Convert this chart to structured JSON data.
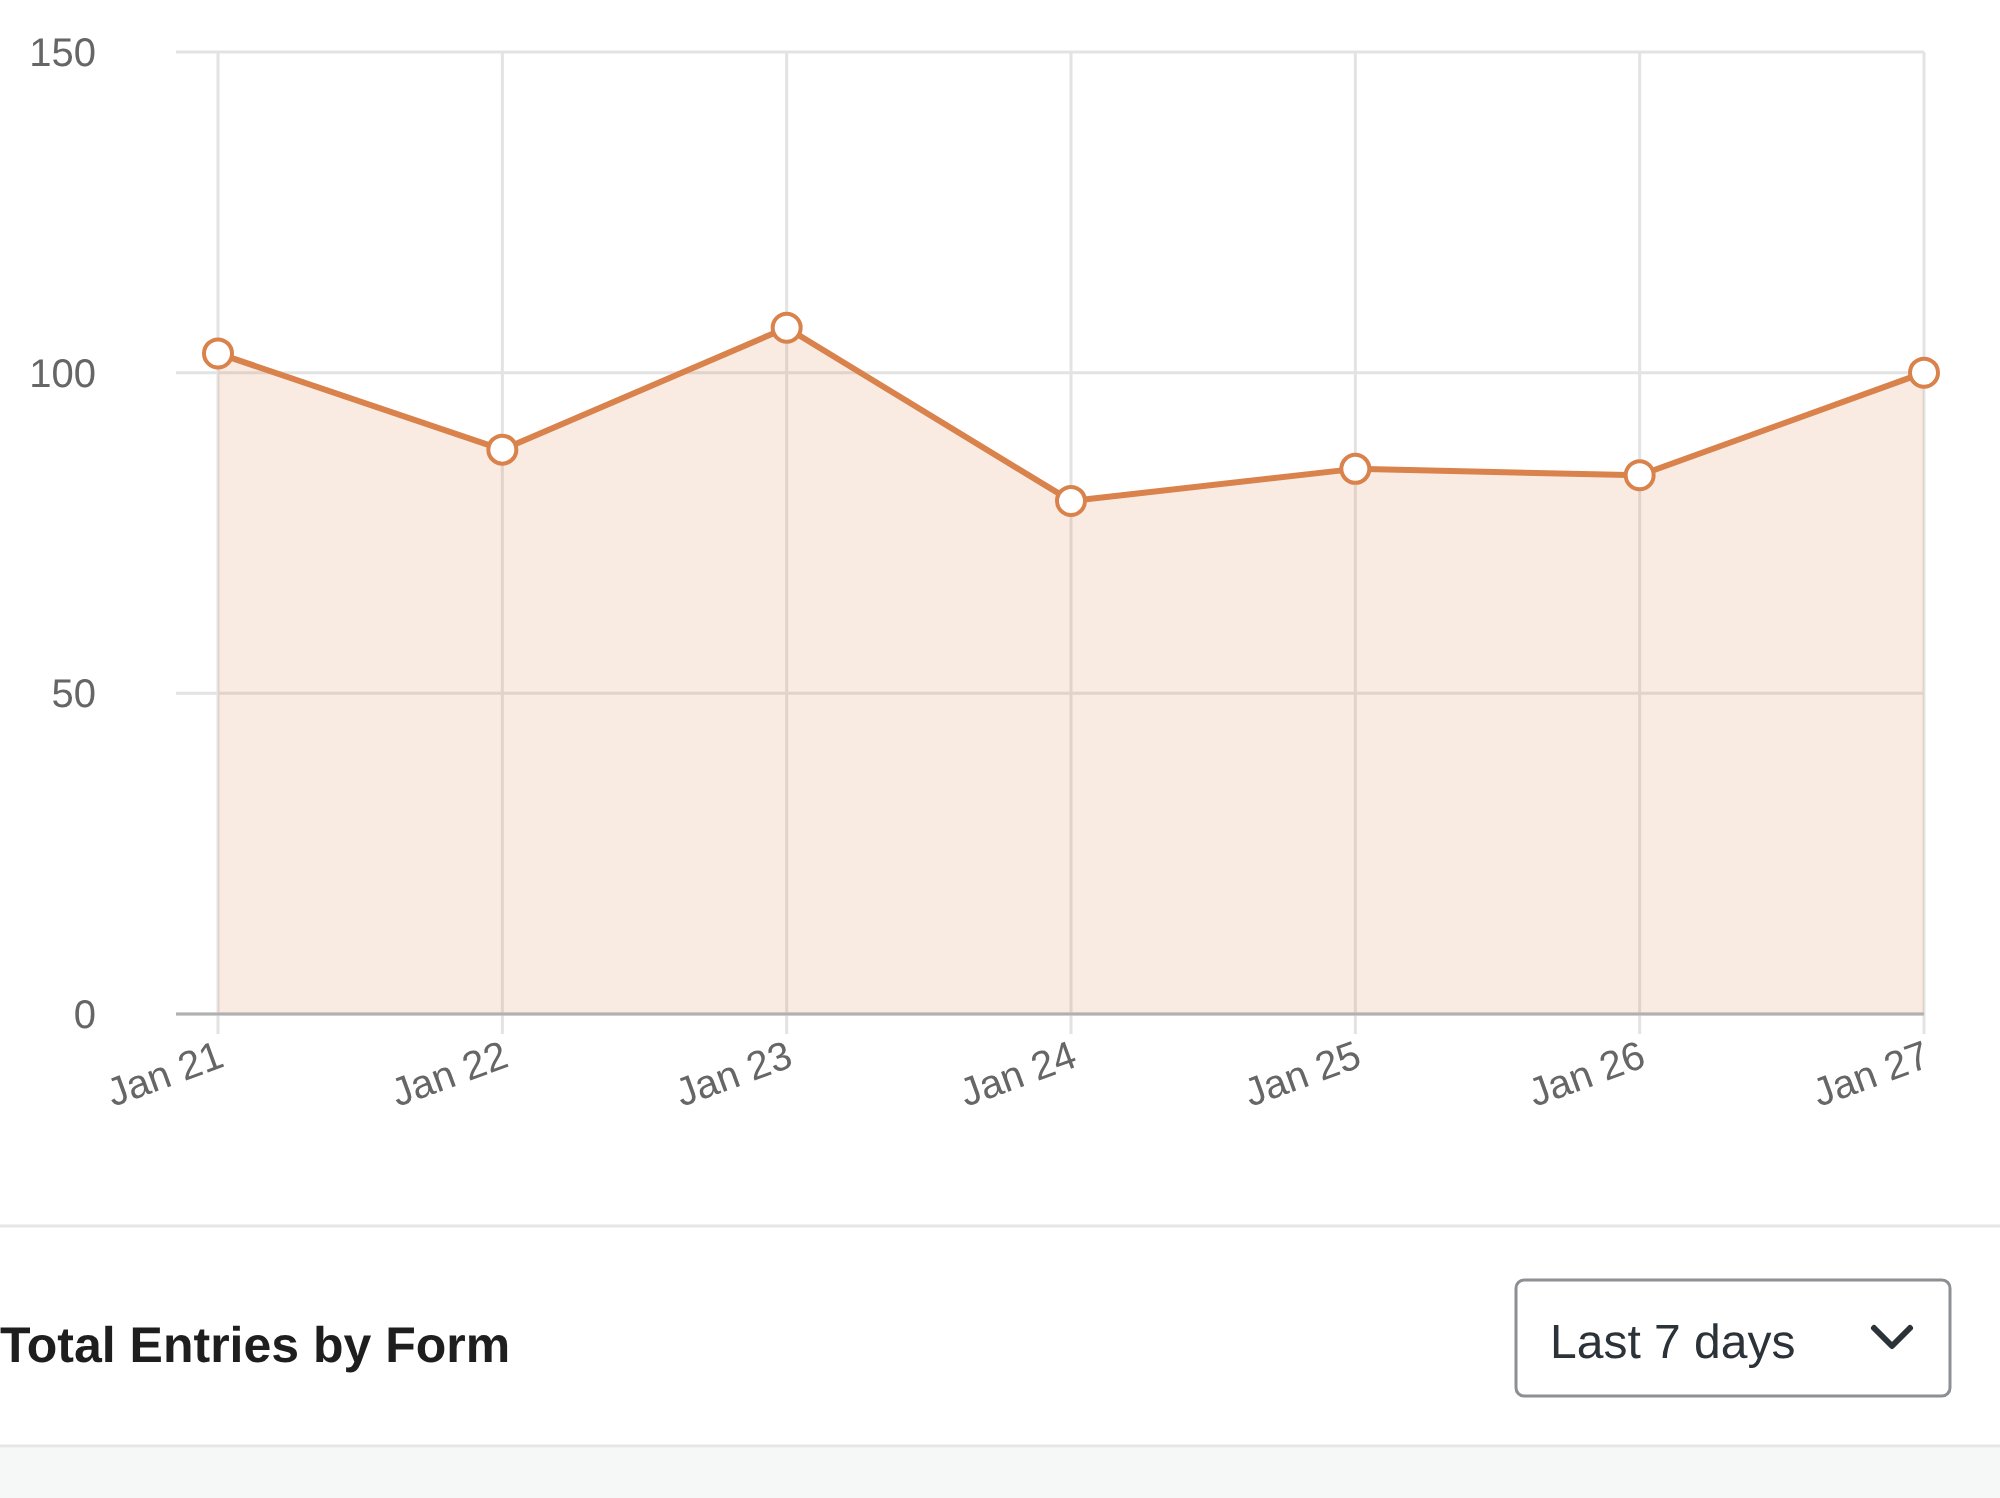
{
  "chart_data": {
    "type": "area",
    "categories": [
      "Jan 21",
      "Jan 22",
      "Jan 23",
      "Jan 24",
      "Jan 25",
      "Jan 26",
      "Jan 27"
    ],
    "series": [
      {
        "color": "#d9824b",
        "values": [
          103,
          88,
          107,
          80,
          85,
          84,
          100
        ]
      }
    ],
    "ylim": [
      0,
      150
    ],
    "yticks": [
      0,
      50,
      100,
      150
    ],
    "grid": true,
    "marker": "circle",
    "line_style": "solid",
    "annotations": [
      "Total Entries by Form",
      "Last 7 days"
    ]
  }
}
